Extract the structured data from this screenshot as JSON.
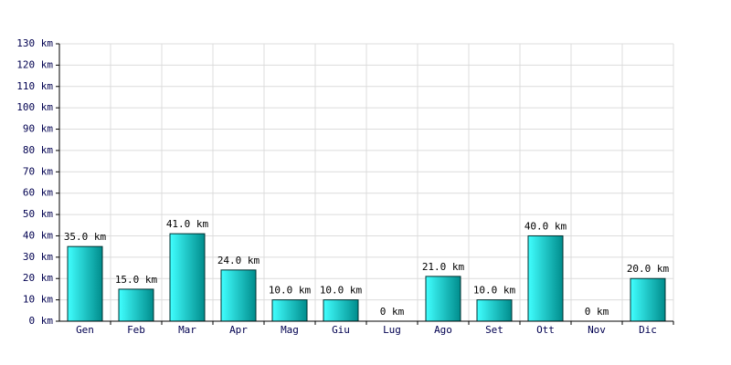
{
  "chart_data": {
    "type": "bar",
    "categories": [
      "Gen",
      "Feb",
      "Mar",
      "Apr",
      "Mag",
      "Giu",
      "Lug",
      "Ago",
      "Set",
      "Ott",
      "Nov",
      "Dic"
    ],
    "values": [
      35,
      15,
      41,
      24,
      10,
      10,
      0,
      21,
      10,
      40,
      0,
      20
    ],
    "value_labels": [
      "35.0 km",
      "15.0 km",
      "41.0 km",
      "24.0 km",
      "10.0 km",
      "10.0 km",
      "0 km",
      "21.0 km",
      "10.0 km",
      "40.0 km",
      "0 km",
      "20.0 km"
    ],
    "color": "#00c8c8",
    "ylim": [
      0,
      130
    ],
    "yticks": [
      {
        "value": 0,
        "label": "0 km"
      },
      {
        "value": 10,
        "label": "10 km"
      },
      {
        "value": 20,
        "label": "20 km"
      },
      {
        "value": 30,
        "label": "30 km"
      },
      {
        "value": 40,
        "label": "40 km"
      },
      {
        "value": 50,
        "label": "50 km"
      },
      {
        "value": 60,
        "label": "60 km"
      },
      {
        "value": 70,
        "label": "70 km"
      },
      {
        "value": 80,
        "label": "80 km"
      },
      {
        "value": 90,
        "label": "90 km"
      },
      {
        "value": 100,
        "label": "100 km"
      },
      {
        "value": 110,
        "label": "110 km"
      },
      {
        "value": 120,
        "label": "120 km"
      },
      {
        "value": 130,
        "label": "130 km"
      }
    ],
    "grid": true
  }
}
